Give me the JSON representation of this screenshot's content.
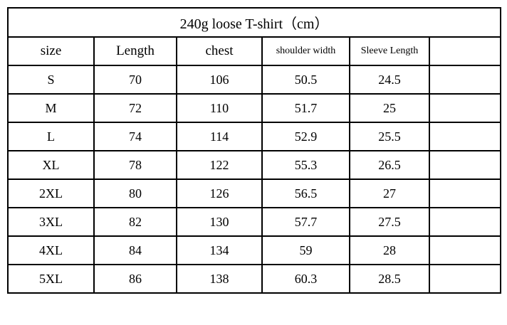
{
  "page": {
    "background_color": "#ffffff",
    "border_color": "#000000",
    "text_color": "#000000"
  },
  "chart_data": {
    "type": "table",
    "title": "240g loose T-shirt（cm）",
    "unit": "cm",
    "columns": [
      "size",
      "Length",
      "chest",
      "shoulder width",
      "Sleeve Length",
      ""
    ],
    "rows": [
      [
        "S",
        "70",
        "106",
        "50.5",
        "24.5",
        ""
      ],
      [
        "M",
        "72",
        "110",
        "51.7",
        "25",
        ""
      ],
      [
        "L",
        "74",
        "114",
        "52.9",
        "25.5",
        ""
      ],
      [
        "XL",
        "78",
        "122",
        "55.3",
        "26.5",
        ""
      ],
      [
        "2XL",
        "80",
        "126",
        "56.5",
        "27",
        ""
      ],
      [
        "3XL",
        "82",
        "130",
        "57.7",
        "27.5",
        ""
      ],
      [
        "4XL",
        "84",
        "134",
        "59",
        "28",
        ""
      ],
      [
        "5XL",
        "86",
        "138",
        "60.3",
        "28.5",
        ""
      ]
    ]
  }
}
